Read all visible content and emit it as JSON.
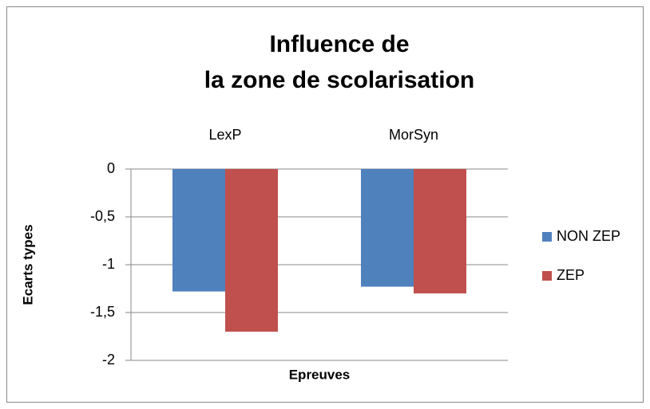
{
  "chart_data": {
    "type": "bar",
    "title": [
      "Influence de",
      "la zone de scolarisation"
    ],
    "x_label": "Epreuves",
    "y_label": "Ecarts types",
    "categories": [
      "LexP",
      "MorSyn"
    ],
    "series": [
      {
        "name": "NON ZEP",
        "color": "#4f81bd",
        "values": [
          -1.28,
          -1.23
        ]
      },
      {
        "name": "ZEP",
        "color": "#c0504d",
        "values": [
          -1.7,
          -1.3
        ]
      }
    ],
    "ylim": [
      -2,
      0
    ],
    "yticks": [
      0,
      {
        "value": -0.5,
        "label": "-0,5"
      },
      -1,
      {
        "value": -1.5,
        "label": "-1,5"
      },
      -2
    ],
    "grid": true,
    "legend": "right"
  }
}
